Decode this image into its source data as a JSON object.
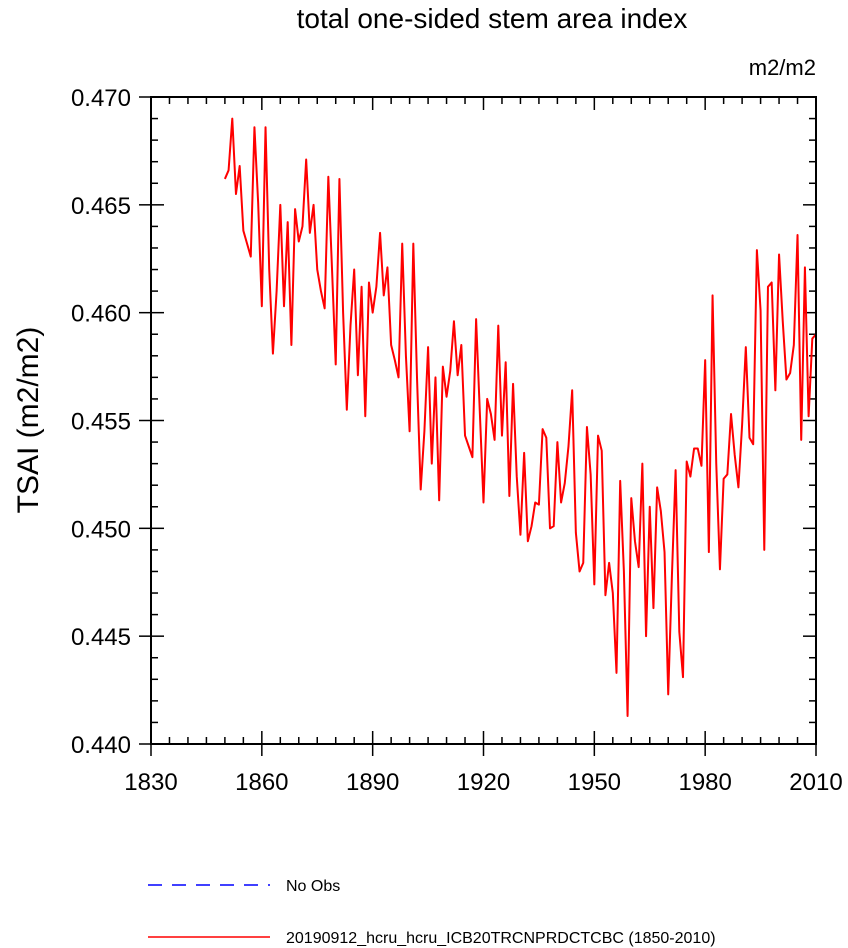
{
  "chart_data": {
    "type": "line",
    "title": "total one-sided stem area index",
    "units": "m2/m2",
    "ylabel": "TSAI  (m2/m2)",
    "xlabel": "",
    "xlim": [
      1830,
      2010
    ],
    "ylim": [
      0.44,
      0.47
    ],
    "xticks": [
      1830,
      1860,
      1890,
      1920,
      1950,
      1980,
      2010
    ],
    "yticks": [
      0.44,
      0.445,
      0.45,
      0.455,
      0.46,
      0.465,
      0.47
    ],
    "xtick_labels": [
      "1830",
      "1860",
      "1890",
      "1920",
      "1950",
      "1980",
      "2010"
    ],
    "ytick_labels": [
      "0.440",
      "0.445",
      "0.450",
      "0.455",
      "0.460",
      "0.465",
      "0.470"
    ],
    "grid": false,
    "legend_position": "bottom",
    "series": [
      {
        "name": "No Obs",
        "color": "#0000ff",
        "dash": "dashed",
        "x": [],
        "y": []
      },
      {
        "name": "20190912_hcru_hcru_ICB20TRCNPRDCTCBC (1850-2010)",
        "color": "#ff0000",
        "dash": "solid",
        "x_start": 1850,
        "x_step": 1,
        "y": [
          0.4662,
          0.4666,
          0.469,
          0.4655,
          0.4668,
          0.4638,
          0.4632,
          0.4626,
          0.4686,
          0.4651,
          0.4603,
          0.4686,
          0.462,
          0.4581,
          0.461,
          0.465,
          0.4603,
          0.4642,
          0.4585,
          0.4648,
          0.4633,
          0.464,
          0.4671,
          0.4637,
          0.465,
          0.462,
          0.461,
          0.4602,
          0.4663,
          0.462,
          0.4576,
          0.4662,
          0.46,
          0.4555,
          0.4594,
          0.462,
          0.4571,
          0.4612,
          0.4552,
          0.4614,
          0.46,
          0.4612,
          0.4637,
          0.4608,
          0.4621,
          0.4585,
          0.4578,
          0.457,
          0.4632,
          0.458,
          0.4545,
          0.4632,
          0.457,
          0.4518,
          0.4545,
          0.4584,
          0.453,
          0.457,
          0.4513,
          0.4575,
          0.4561,
          0.4573,
          0.4596,
          0.4571,
          0.4585,
          0.4543,
          0.4538,
          0.4533,
          0.4597,
          0.4554,
          0.4512,
          0.456,
          0.4553,
          0.4541,
          0.4594,
          0.4543,
          0.4577,
          0.4515,
          0.4567,
          0.4524,
          0.4497,
          0.4535,
          0.4494,
          0.4501,
          0.4512,
          0.4511,
          0.4546,
          0.4542,
          0.45,
          0.4501,
          0.454,
          0.4512,
          0.4521,
          0.4538,
          0.4564,
          0.4498,
          0.448,
          0.4484,
          0.4547,
          0.4525,
          0.4474,
          0.4543,
          0.4536,
          0.4469,
          0.4484,
          0.447,
          0.4433,
          0.4522,
          0.448,
          0.4413,
          0.4514,
          0.4494,
          0.4482,
          0.453,
          0.445,
          0.451,
          0.4463,
          0.4519,
          0.4508,
          0.4489,
          0.4423,
          0.4478,
          0.4527,
          0.4452,
          0.4431,
          0.4531,
          0.4524,
          0.4537,
          0.4537,
          0.4529,
          0.4578,
          0.4489,
          0.4608,
          0.453,
          0.4481,
          0.4523,
          0.4525,
          0.4553,
          0.4534,
          0.4519,
          0.4548,
          0.4584,
          0.4542,
          0.4539,
          0.4629,
          0.4601,
          0.449,
          0.4612,
          0.4614,
          0.4564,
          0.4627,
          0.4596,
          0.4569,
          0.4572,
          0.4585,
          0.4636,
          0.4541,
          0.4621,
          0.4552,
          0.4588,
          0.459
        ]
      }
    ]
  }
}
